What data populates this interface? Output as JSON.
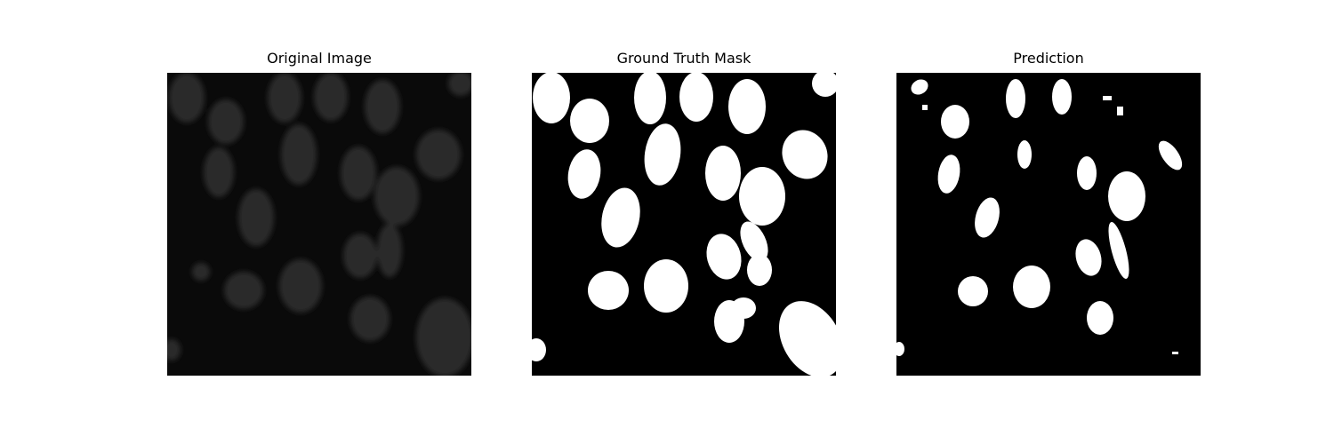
{
  "panels": [
    {
      "title": "Original Image"
    },
    {
      "title": "Ground Truth Mask"
    },
    {
      "title": "Prediction"
    }
  ],
  "colors": {
    "background": "#ffffff",
    "mask_background": "#000000",
    "mask_foreground": "#ffffff",
    "original_background": "#0b0b0b",
    "original_nucleus": "#2a2a2a"
  }
}
